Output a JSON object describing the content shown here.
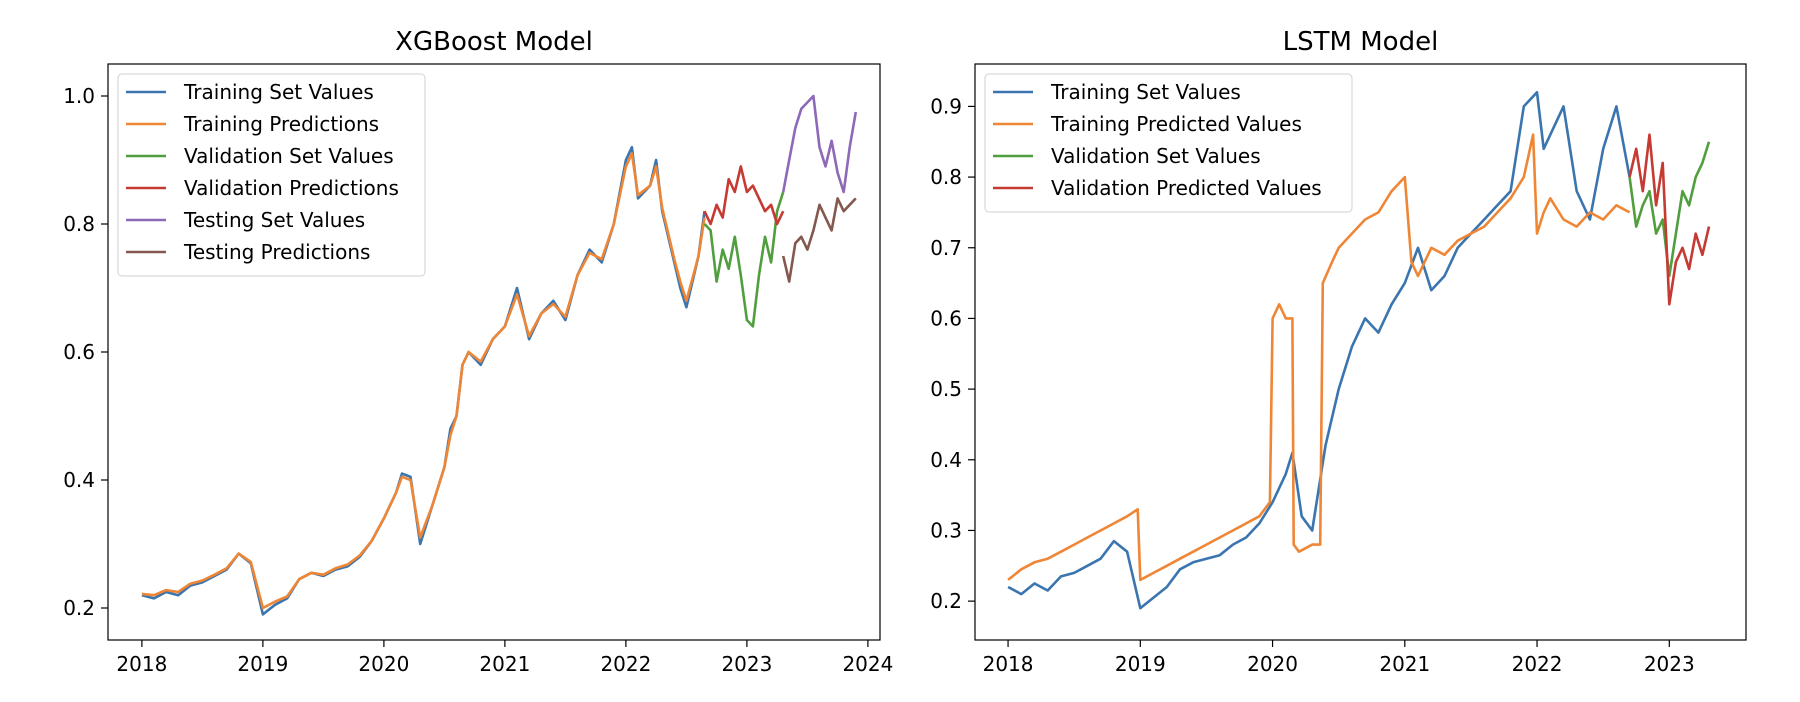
{
  "chart_data": [
    {
      "type": "line",
      "title": "XGBoost Model",
      "xlabel": "",
      "ylabel": "",
      "xlim": [
        2017.72,
        2024.1
      ],
      "ylim": [
        0.15,
        1.05
      ],
      "xticks": [
        2018,
        2019,
        2020,
        2021,
        2022,
        2023,
        2024
      ],
      "xtick_labels": [
        "2018",
        "2019",
        "2020",
        "2021",
        "2022",
        "2023",
        "2024"
      ],
      "yticks": [
        0.2,
        0.4,
        0.6,
        0.8,
        1.0
      ],
      "ytick_labels": [
        "0.2",
        "0.4",
        "0.6",
        "0.8",
        "1.0"
      ],
      "grid": false,
      "legend_position": "upper-left",
      "series": [
        {
          "name": "Training Set Values",
          "color": "#3b75af",
          "x": [
            2018.0,
            2018.1,
            2018.2,
            2018.3,
            2018.4,
            2018.5,
            2018.6,
            2018.7,
            2018.8,
            2018.9,
            2019.0,
            2019.1,
            2019.2,
            2019.3,
            2019.4,
            2019.5,
            2019.6,
            2019.7,
            2019.8,
            2019.9,
            2020.0,
            2020.1,
            2020.15,
            2020.22,
            2020.3,
            2020.4,
            2020.5,
            2020.55,
            2020.6,
            2020.65,
            2020.7,
            2020.8,
            2020.9,
            2021.0,
            2021.1,
            2021.2,
            2021.3,
            2021.4,
            2021.5,
            2021.6,
            2021.7,
            2021.8,
            2021.9,
            2022.0,
            2022.05,
            2022.1,
            2022.2,
            2022.25,
            2022.3,
            2022.4,
            2022.45,
            2022.5,
            2022.6,
            2022.65
          ],
          "y": [
            0.22,
            0.215,
            0.225,
            0.22,
            0.235,
            0.24,
            0.25,
            0.26,
            0.285,
            0.27,
            0.19,
            0.205,
            0.215,
            0.245,
            0.255,
            0.25,
            0.26,
            0.265,
            0.28,
            0.305,
            0.34,
            0.38,
            0.41,
            0.405,
            0.3,
            0.36,
            0.42,
            0.48,
            0.5,
            0.58,
            0.6,
            0.58,
            0.62,
            0.64,
            0.7,
            0.62,
            0.66,
            0.68,
            0.65,
            0.72,
            0.76,
            0.74,
            0.8,
            0.9,
            0.92,
            0.84,
            0.86,
            0.9,
            0.82,
            0.74,
            0.7,
            0.67,
            0.75,
            0.82
          ]
        },
        {
          "name": "Training Predictions",
          "color": "#ef8636",
          "x": [
            2018.0,
            2018.1,
            2018.2,
            2018.3,
            2018.4,
            2018.5,
            2018.6,
            2018.7,
            2018.8,
            2018.9,
            2019.0,
            2019.1,
            2019.2,
            2019.3,
            2019.4,
            2019.5,
            2019.6,
            2019.7,
            2019.8,
            2019.9,
            2020.0,
            2020.1,
            2020.15,
            2020.22,
            2020.3,
            2020.4,
            2020.5,
            2020.55,
            2020.6,
            2020.65,
            2020.7,
            2020.8,
            2020.9,
            2021.0,
            2021.1,
            2021.2,
            2021.3,
            2021.4,
            2021.5,
            2021.6,
            2021.7,
            2021.8,
            2021.9,
            2022.0,
            2022.05,
            2022.1,
            2022.2,
            2022.25,
            2022.3,
            2022.4,
            2022.45,
            2022.5,
            2022.6,
            2022.65
          ],
          "y": [
            0.222,
            0.22,
            0.228,
            0.225,
            0.238,
            0.243,
            0.252,
            0.262,
            0.285,
            0.272,
            0.2,
            0.21,
            0.218,
            0.245,
            0.255,
            0.252,
            0.262,
            0.268,
            0.282,
            0.305,
            0.34,
            0.38,
            0.405,
            0.4,
            0.31,
            0.36,
            0.42,
            0.47,
            0.5,
            0.58,
            0.6,
            0.585,
            0.62,
            0.64,
            0.69,
            0.625,
            0.66,
            0.675,
            0.655,
            0.72,
            0.755,
            0.745,
            0.8,
            0.89,
            0.91,
            0.845,
            0.86,
            0.89,
            0.825,
            0.745,
            0.71,
            0.68,
            0.75,
            0.81
          ]
        },
        {
          "name": "Validation Set Values",
          "color": "#519e3e",
          "x": [
            2022.65,
            2022.7,
            2022.75,
            2022.8,
            2022.85,
            2022.9,
            2022.95,
            2023.0,
            2023.05,
            2023.1,
            2023.15,
            2023.2,
            2023.25,
            2023.3
          ],
          "y": [
            0.8,
            0.79,
            0.71,
            0.76,
            0.73,
            0.78,
            0.72,
            0.65,
            0.64,
            0.72,
            0.78,
            0.74,
            0.82,
            0.85
          ]
        },
        {
          "name": "Validation Predictions",
          "color": "#c53a32",
          "x": [
            2022.65,
            2022.7,
            2022.75,
            2022.8,
            2022.85,
            2022.9,
            2022.95,
            2023.0,
            2023.05,
            2023.1,
            2023.15,
            2023.2,
            2023.25,
            2023.3
          ],
          "y": [
            0.82,
            0.8,
            0.83,
            0.81,
            0.87,
            0.85,
            0.89,
            0.85,
            0.86,
            0.84,
            0.82,
            0.83,
            0.8,
            0.82
          ]
        },
        {
          "name": "Testing Set Values",
          "color": "#8d69b8",
          "x": [
            2023.3,
            2023.35,
            2023.4,
            2023.45,
            2023.5,
            2023.55,
            2023.6,
            2023.65,
            2023.7,
            2023.75,
            2023.8,
            2023.85,
            2023.9
          ],
          "y": [
            0.85,
            0.9,
            0.95,
            0.98,
            0.99,
            1.0,
            0.92,
            0.89,
            0.93,
            0.88,
            0.85,
            0.92,
            0.975
          ]
        },
        {
          "name": "Testing Predictions",
          "color": "#84584e",
          "x": [
            2023.3,
            2023.35,
            2023.4,
            2023.45,
            2023.5,
            2023.55,
            2023.6,
            2023.65,
            2023.7,
            2023.75,
            2023.8,
            2023.85,
            2023.9
          ],
          "y": [
            0.75,
            0.71,
            0.77,
            0.78,
            0.76,
            0.79,
            0.83,
            0.81,
            0.79,
            0.84,
            0.82,
            0.83,
            0.84
          ]
        }
      ]
    },
    {
      "type": "line",
      "title": "LSTM Model",
      "xlabel": "",
      "ylabel": "",
      "xlim": [
        2017.75,
        2023.58
      ],
      "ylim": [
        0.145,
        0.96
      ],
      "xticks": [
        2018,
        2019,
        2020,
        2021,
        2022,
        2023
      ],
      "xtick_labels": [
        "2018",
        "2019",
        "2020",
        "2021",
        "2022",
        "2023"
      ],
      "yticks": [
        0.2,
        0.3,
        0.4,
        0.5,
        0.6,
        0.7,
        0.8,
        0.9
      ],
      "ytick_labels": [
        "0.2",
        "0.3",
        "0.4",
        "0.5",
        "0.6",
        "0.7",
        "0.8",
        "0.9"
      ],
      "grid": false,
      "legend_position": "upper-left",
      "series": [
        {
          "name": "Training Set Values",
          "color": "#3b75af",
          "x": [
            2018.0,
            2018.1,
            2018.2,
            2018.3,
            2018.4,
            2018.5,
            2018.6,
            2018.7,
            2018.8,
            2018.9,
            2019.0,
            2019.1,
            2019.2,
            2019.3,
            2019.4,
            2019.5,
            2019.6,
            2019.7,
            2019.8,
            2019.9,
            2020.0,
            2020.1,
            2020.15,
            2020.22,
            2020.3,
            2020.4,
            2020.5,
            2020.6,
            2020.7,
            2020.8,
            2020.9,
            2021.0,
            2021.1,
            2021.2,
            2021.3,
            2021.4,
            2021.5,
            2021.6,
            2021.7,
            2021.8,
            2021.9,
            2022.0,
            2022.05,
            2022.1,
            2022.2,
            2022.3,
            2022.4,
            2022.5,
            2022.6,
            2022.7
          ],
          "y": [
            0.22,
            0.21,
            0.225,
            0.215,
            0.235,
            0.24,
            0.25,
            0.26,
            0.285,
            0.27,
            0.19,
            0.205,
            0.22,
            0.245,
            0.255,
            0.26,
            0.265,
            0.28,
            0.29,
            0.31,
            0.34,
            0.38,
            0.41,
            0.32,
            0.3,
            0.42,
            0.5,
            0.56,
            0.6,
            0.58,
            0.62,
            0.65,
            0.7,
            0.64,
            0.66,
            0.7,
            0.72,
            0.74,
            0.76,
            0.78,
            0.9,
            0.92,
            0.84,
            0.86,
            0.9,
            0.78,
            0.74,
            0.84,
            0.9,
            0.8
          ]
        },
        {
          "name": "Training Predicted Values",
          "color": "#ef8636",
          "x": [
            2018.0,
            2018.1,
            2018.2,
            2018.3,
            2018.4,
            2018.5,
            2018.6,
            2018.7,
            2018.8,
            2018.9,
            2018.98,
            2019.0,
            2019.1,
            2019.2,
            2019.3,
            2019.4,
            2019.5,
            2019.6,
            2019.7,
            2019.8,
            2019.9,
            2019.98,
            2020.0,
            2020.05,
            2020.1,
            2020.15,
            2020.16,
            2020.2,
            2020.3,
            2020.36,
            2020.38,
            2020.45,
            2020.5,
            2020.6,
            2020.7,
            2020.8,
            2020.9,
            2021.0,
            2021.05,
            2021.1,
            2021.2,
            2021.3,
            2021.4,
            2021.5,
            2021.6,
            2021.7,
            2021.8,
            2021.9,
            2021.97,
            2022.0,
            2022.05,
            2022.1,
            2022.2,
            2022.3,
            2022.4,
            2022.5,
            2022.6,
            2022.7
          ],
          "y": [
            0.23,
            0.245,
            0.255,
            0.26,
            0.27,
            0.28,
            0.29,
            0.3,
            0.31,
            0.32,
            0.33,
            0.23,
            0.24,
            0.25,
            0.26,
            0.27,
            0.28,
            0.29,
            0.3,
            0.31,
            0.32,
            0.34,
            0.6,
            0.62,
            0.6,
            0.6,
            0.28,
            0.27,
            0.28,
            0.28,
            0.65,
            0.68,
            0.7,
            0.72,
            0.74,
            0.75,
            0.78,
            0.8,
            0.68,
            0.66,
            0.7,
            0.69,
            0.71,
            0.72,
            0.73,
            0.75,
            0.77,
            0.8,
            0.86,
            0.72,
            0.75,
            0.77,
            0.74,
            0.73,
            0.75,
            0.74,
            0.76,
            0.75
          ]
        },
        {
          "name": "Validation Set Values",
          "color": "#519e3e",
          "x": [
            2022.7,
            2022.75,
            2022.8,
            2022.85,
            2022.9,
            2022.95,
            2023.0,
            2023.05,
            2023.1,
            2023.15,
            2023.2,
            2023.25,
            2023.3
          ],
          "y": [
            0.8,
            0.73,
            0.76,
            0.78,
            0.72,
            0.74,
            0.66,
            0.72,
            0.78,
            0.76,
            0.8,
            0.82,
            0.85
          ]
        },
        {
          "name": "Validation Predicted Values",
          "color": "#c53a32",
          "x": [
            2022.7,
            2022.75,
            2022.8,
            2022.85,
            2022.9,
            2022.95,
            2023.0,
            2023.05,
            2023.1,
            2023.15,
            2023.2,
            2023.25,
            2023.3
          ],
          "y": [
            0.8,
            0.84,
            0.78,
            0.86,
            0.76,
            0.82,
            0.62,
            0.68,
            0.7,
            0.67,
            0.72,
            0.69,
            0.73
          ]
        }
      ]
    }
  ]
}
